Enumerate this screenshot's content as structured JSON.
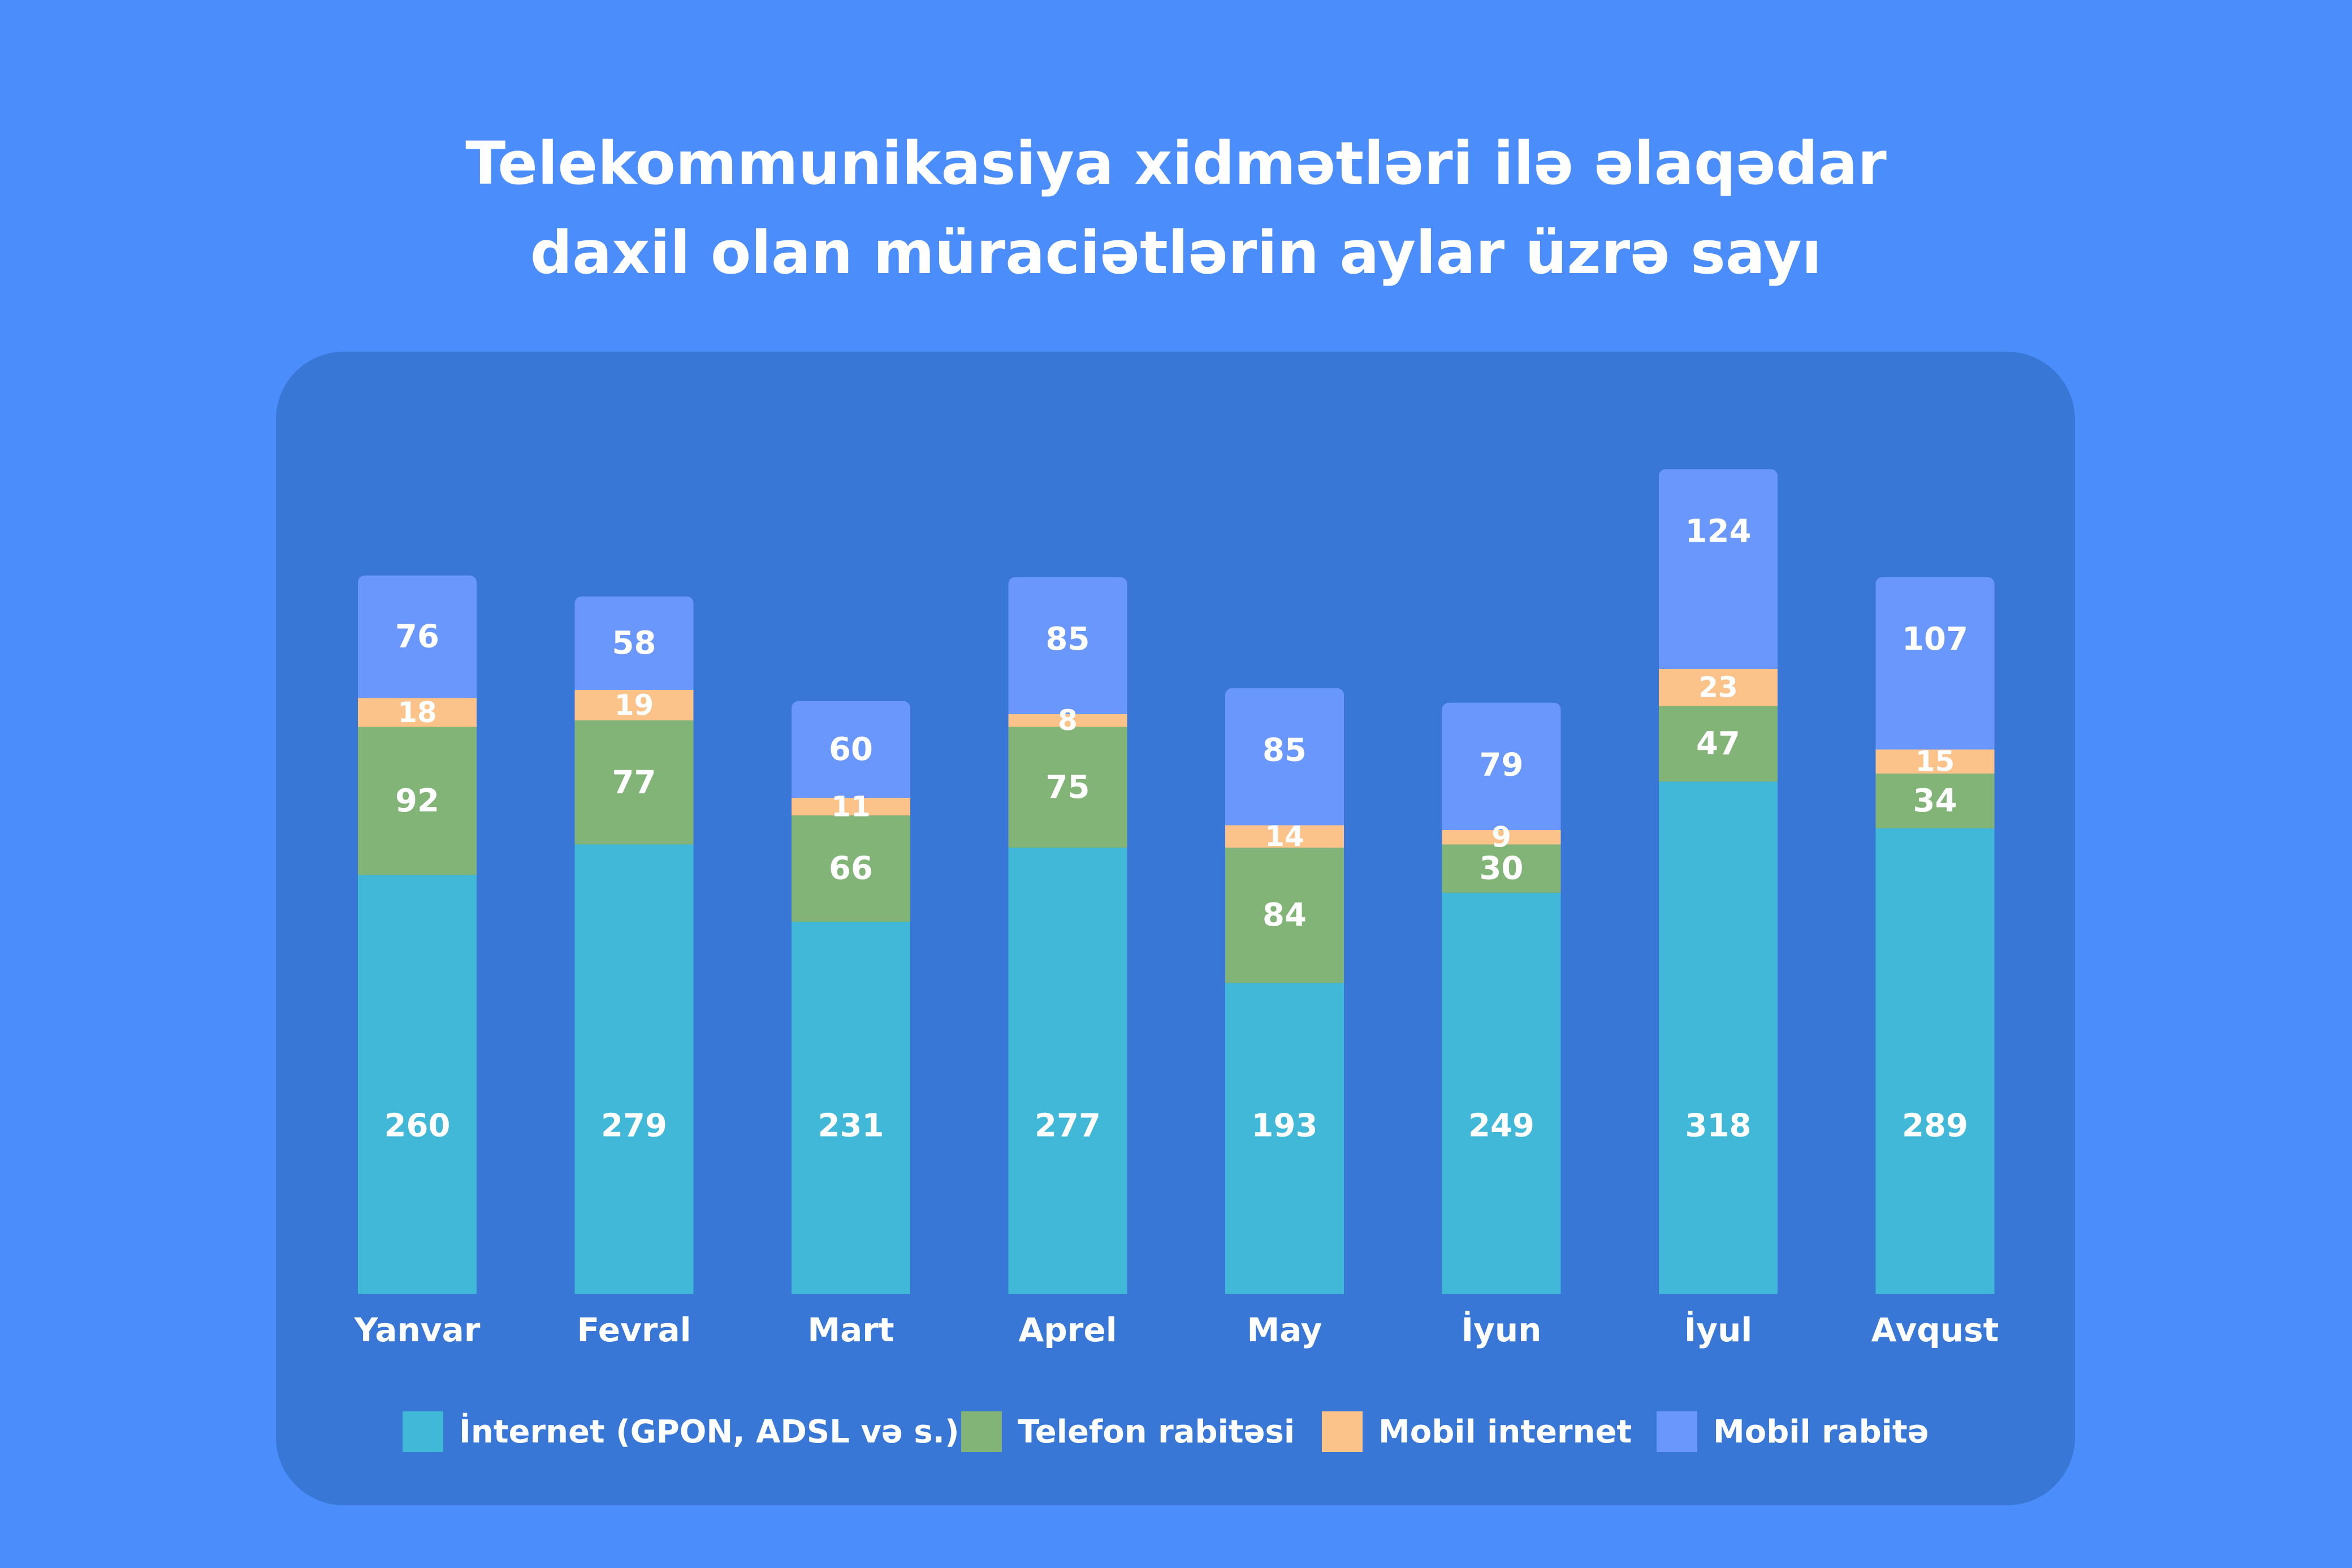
{
  "title": {
    "line1": "Telekommunikasiya xidmətləri ilə əlaqədar",
    "line2": "daxil olan müraciətlərin aylar üzrə sayı"
  },
  "chart_data": {
    "type": "bar",
    "stacked": true,
    "categories": [
      "Yanvar",
      "Fevral",
      "Mart",
      "Aprel",
      "May",
      "İyun",
      "İyul",
      "Avqust"
    ],
    "series": [
      {
        "name": "İnternet (GPON, ADSL və s.)",
        "color": "#41b8d8",
        "values": [
          260,
          279,
          231,
          277,
          193,
          249,
          318,
          289
        ]
      },
      {
        "name": "Telefon rabitəsi",
        "color": "#82b477",
        "values": [
          92,
          77,
          66,
          75,
          84,
          30,
          47,
          34
        ]
      },
      {
        "name": "Mobil internet",
        "color": "#fbc289",
        "values": [
          18,
          19,
          11,
          8,
          14,
          9,
          23,
          15
        ]
      },
      {
        "name": "Mobil rabitə",
        "color": "#6a97fb",
        "values": [
          76,
          58,
          60,
          85,
          85,
          79,
          124,
          107
        ]
      }
    ],
    "legend_position": "bottom",
    "grid": false,
    "data_labels": true
  },
  "colors": {
    "background": "#4b8dfb",
    "panel": "#3877d6",
    "text": "#ffffff"
  }
}
